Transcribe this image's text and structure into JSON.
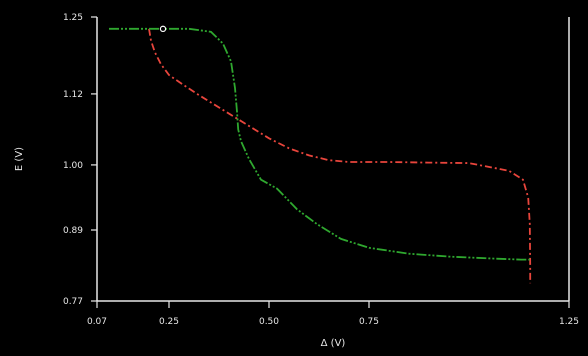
{
  "chart_data": {
    "type": "line",
    "title": "",
    "xlabel": "Δ (V)",
    "ylabel": "E (V)",
    "xlim": [
      0.07,
      1.25
    ],
    "ylim": [
      0.77,
      1.25
    ],
    "xticks": [
      0.07,
      0.25,
      0.5,
      0.75,
      1.25
    ],
    "xtick_labels": [
      "0.07",
      "0.25",
      "0.50",
      "0.75",
      "1.25"
    ],
    "yticks": [
      0.77,
      0.89,
      1.0,
      1.12,
      1.25
    ],
    "ytick_labels": [
      "0.77",
      "0.89",
      "1.00",
      "1.12",
      "1.25"
    ],
    "grid": false,
    "background": "#000000",
    "axis_color": "#e8e8e8",
    "series": [
      {
        "color": "#e8453c",
        "dash": "7 3 2 3",
        "points": [
          [
            0.2,
            1.23
          ],
          [
            0.205,
            1.21
          ],
          [
            0.215,
            1.19
          ],
          [
            0.23,
            1.17
          ],
          [
            0.25,
            1.152
          ],
          [
            0.28,
            1.138
          ],
          [
            0.32,
            1.12
          ],
          [
            0.38,
            1.095
          ],
          [
            0.44,
            1.07
          ],
          [
            0.5,
            1.045
          ],
          [
            0.55,
            1.028
          ],
          [
            0.6,
            1.016
          ],
          [
            0.65,
            1.008
          ],
          [
            0.7,
            1.005
          ],
          [
            0.8,
            1.005
          ],
          [
            0.9,
            1.004
          ],
          [
            1.0,
            1.003
          ],
          [
            1.1,
            0.99
          ],
          [
            1.135,
            0.975
          ],
          [
            1.148,
            0.945
          ],
          [
            1.152,
            0.9
          ],
          [
            1.153,
            0.83
          ],
          [
            1.153,
            0.8
          ]
        ]
      },
      {
        "color": "#2fa82f",
        "dash": "10 2 2 2 2 2",
        "points": [
          [
            0.1,
            1.23
          ],
          [
            0.2,
            1.23
          ],
          [
            0.3,
            1.23
          ],
          [
            0.355,
            1.225
          ],
          [
            0.385,
            1.205
          ],
          [
            0.405,
            1.175
          ],
          [
            0.415,
            1.13
          ],
          [
            0.42,
            1.09
          ],
          [
            0.423,
            1.06
          ],
          [
            0.43,
            1.04
          ],
          [
            0.45,
            1.01
          ],
          [
            0.48,
            0.975
          ],
          [
            0.52,
            0.96
          ],
          [
            0.57,
            0.925
          ],
          [
            0.62,
            0.9
          ],
          [
            0.68,
            0.875
          ],
          [
            0.75,
            0.86
          ],
          [
            0.85,
            0.85
          ],
          [
            0.95,
            0.845
          ],
          [
            1.05,
            0.842
          ],
          [
            1.13,
            0.84
          ],
          [
            1.152,
            0.84
          ]
        ]
      }
    ],
    "marker": {
      "x": 0.235,
      "y": 1.23
    }
  }
}
